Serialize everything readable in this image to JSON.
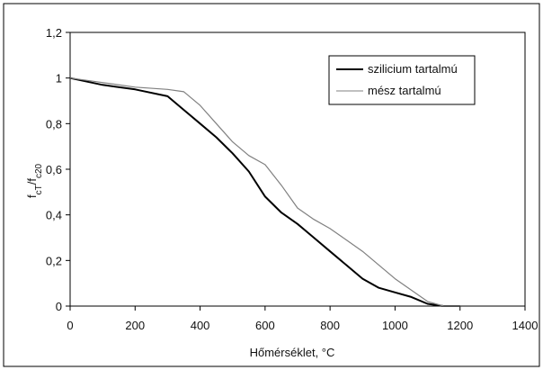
{
  "chart_data": {
    "type": "line",
    "title": "",
    "xlabel": "Hőmérséklet, °C",
    "ylabel_main": "f",
    "ylabel_sub1": "cT",
    "ylabel_sep": "/f",
    "ylabel_sub2": "c20",
    "xlim": [
      0,
      1400
    ],
    "ylim": [
      0,
      1.2
    ],
    "x_ticks": [
      0,
      200,
      400,
      600,
      800,
      1000,
      1200,
      1400
    ],
    "x_tick_labels": [
      "0",
      "200",
      "400",
      "600",
      "800",
      "1000",
      "1200",
      "1400"
    ],
    "y_ticks": [
      0,
      0.2,
      0.4,
      0.6,
      0.8,
      1,
      1.2
    ],
    "y_tick_labels": [
      "0",
      "0,2",
      "0,4",
      "0,6",
      "0,8",
      "1",
      "1,2"
    ],
    "grid": false,
    "legend_position": "top-right",
    "series": [
      {
        "name": "szilicium tartalmú",
        "color": "#000000",
        "x": [
          0,
          100,
          200,
          300,
          350,
          400,
          450,
          500,
          550,
          600,
          650,
          700,
          750,
          800,
          850,
          900,
          950,
          1000,
          1050,
          1100,
          1150,
          1200
        ],
        "y": [
          1.0,
          0.97,
          0.95,
          0.92,
          0.86,
          0.8,
          0.74,
          0.67,
          0.59,
          0.48,
          0.41,
          0.36,
          0.3,
          0.24,
          0.18,
          0.12,
          0.08,
          0.06,
          0.04,
          0.01,
          0.0,
          0.0
        ]
      },
      {
        "name": "mész tartalmú",
        "color": "#808080",
        "x": [
          0,
          100,
          200,
          300,
          350,
          400,
          450,
          500,
          550,
          600,
          650,
          700,
          750,
          800,
          850,
          900,
          950,
          1000,
          1050,
          1100,
          1150,
          1200
        ],
        "y": [
          1.0,
          0.98,
          0.96,
          0.95,
          0.94,
          0.88,
          0.8,
          0.72,
          0.66,
          0.62,
          0.53,
          0.43,
          0.38,
          0.34,
          0.29,
          0.24,
          0.18,
          0.12,
          0.07,
          0.02,
          0.0,
          0.0
        ]
      }
    ]
  }
}
